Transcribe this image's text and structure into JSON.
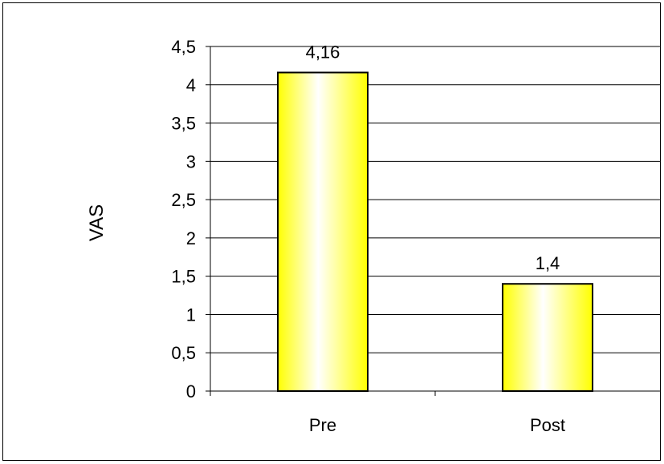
{
  "chart_data": {
    "type": "bar",
    "title": "",
    "xlabel": "",
    "ylabel": "VAS",
    "categories": [
      "Pre",
      "Post"
    ],
    "values": [
      4.16,
      1.4
    ],
    "data_labels": [
      "4,16",
      "1,4"
    ],
    "ylim": [
      0,
      4.5
    ],
    "ytick_values": [
      0,
      0.5,
      1,
      1.5,
      2,
      2.5,
      3,
      3.5,
      4,
      4.5
    ],
    "ytick_labels": [
      "0",
      "0,5",
      "1",
      "1,5",
      "2",
      "2,5",
      "3",
      "3,5",
      "4",
      "4,5"
    ],
    "grid": true,
    "legend": "none",
    "colors": {
      "bar_edge": "#ffff00",
      "bar_center": "#ffffff",
      "bar_outline": "#000000",
      "gridline": "#000000",
      "frame": "#000000"
    }
  }
}
